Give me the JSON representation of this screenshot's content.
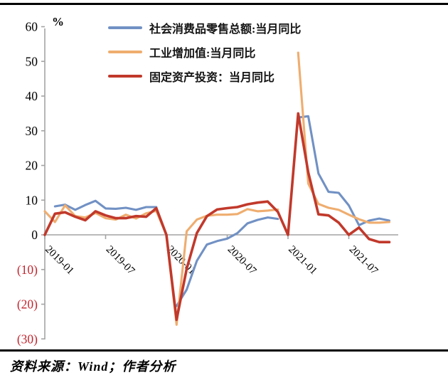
{
  "percent_label": "%",
  "source_note": "资料来源：Wind；作者分析",
  "chart_data": {
    "type": "line",
    "title": "",
    "unit_label": "%",
    "grid": false,
    "legend_position": "top-center",
    "ylim": [
      -30,
      60
    ],
    "y_ticks": [
      60,
      50,
      40,
      30,
      20,
      10,
      0,
      -10,
      -20,
      -30
    ],
    "x_tick_indices": [
      0,
      6,
      12,
      18,
      24,
      30
    ],
    "x": [
      "2019-01",
      "2019-02",
      "2019-03",
      "2019-04",
      "2019-05",
      "2019-06",
      "2019-07",
      "2019-08",
      "2019-09",
      "2019-10",
      "2019-11",
      "2019-12",
      "2020-01",
      "2020-02",
      "2020-03",
      "2020-04",
      "2020-05",
      "2020-06",
      "2020-07",
      "2020-08",
      "2020-09",
      "2020-10",
      "2020-11",
      "2020-12",
      "2021-01",
      "2021-02",
      "2021-03",
      "2021-04",
      "2021-05",
      "2021-06",
      "2021-07",
      "2021-08",
      "2021-09",
      "2021-10",
      "2021-11"
    ],
    "series": [
      {
        "name": "社会消费品零售总额:当月同比",
        "color": "#7191C4",
        "values": [
          null,
          8.2,
          8.7,
          7.2,
          8.6,
          9.8,
          7.6,
          7.5,
          7.8,
          7.2,
          8.0,
          8.0,
          null,
          -20.5,
          -15.8,
          -7.5,
          -2.8,
          -1.8,
          -1.1,
          0.5,
          3.3,
          4.3,
          5.0,
          4.6,
          null,
          33.8,
          34.2,
          17.7,
          12.4,
          12.1,
          8.5,
          2.8,
          4.1,
          4.7,
          4.1
        ]
      },
      {
        "name": "工业增加值:当月同比",
        "color": "#EFAD6F",
        "values": [
          6.8,
          3.7,
          8.5,
          5.4,
          5.0,
          6.3,
          4.8,
          4.4,
          5.8,
          4.7,
          6.2,
          6.9,
          0.0,
          -25.9,
          1.0,
          4.4,
          5.5,
          5.8,
          5.8,
          6.0,
          7.4,
          6.8,
          7.0,
          7.3,
          null,
          52.5,
          14.8,
          8.9,
          7.8,
          7.2,
          5.8,
          4.5,
          3.5,
          3.5,
          3.7
        ]
      },
      {
        "name": "固定资产投资：当月同比",
        "color": "#C1392B",
        "values": [
          0.0,
          6.1,
          6.5,
          5.2,
          4.2,
          6.8,
          5.6,
          4.8,
          4.8,
          5.4,
          5.2,
          7.7,
          0.0,
          -24.5,
          -9.8,
          0.5,
          5.4,
          7.3,
          7.7,
          8.0,
          8.8,
          9.3,
          9.6,
          6.6,
          0.0,
          35.0,
          18.0,
          5.9,
          5.6,
          3.5,
          0.0,
          2.1,
          -1.2,
          -2.1,
          -2.1
        ]
      }
    ],
    "colors": {
      "axis": "#A3A3A3",
      "tick_label": "#000000",
      "negative_tick_label": "#C2252E"
    }
  }
}
